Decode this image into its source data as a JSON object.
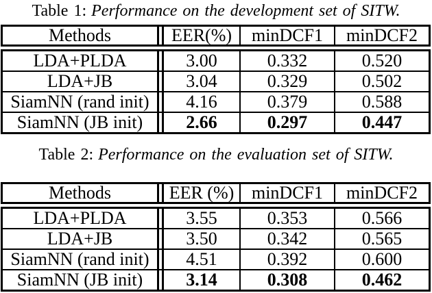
{
  "page": {
    "background_color": "#ffffff",
    "text_color": "#000000",
    "rule_color": "#000000"
  },
  "tables": [
    {
      "caption_label": "Table 1:",
      "caption_text": "Performance on the development set of SITW.",
      "headers": [
        "Methods",
        "EER(%)",
        "minDCF1",
        "minDCF2"
      ],
      "rows": [
        {
          "method": "LDA+PLDA",
          "eer": "3.00",
          "mindcf1": "0.332",
          "mindcf2": "0.520"
        },
        {
          "method": "LDA+JB",
          "eer": "3.04",
          "mindcf1": "0.329",
          "mindcf2": "0.502"
        },
        {
          "method": "SiamNN (rand init)",
          "eer": "4.16",
          "mindcf1": "0.379",
          "mindcf2": "0.588"
        },
        {
          "method": "SiamNN (JB init)",
          "eer": "2.66",
          "mindcf1": "0.297",
          "mindcf2": "0.447"
        }
      ],
      "best_row_index": 3
    },
    {
      "caption_label": "Table 2:",
      "caption_text": "Performance on the evaluation set of SITW.",
      "headers": [
        "Methods",
        "EER (%)",
        "minDCF1",
        "minDCF2"
      ],
      "rows": [
        {
          "method": "LDA+PLDA",
          "eer": "3.55",
          "mindcf1": "0.353",
          "mindcf2": "0.566"
        },
        {
          "method": "LDA+JB",
          "eer": "3.50",
          "mindcf1": "0.342",
          "mindcf2": "0.565"
        },
        {
          "method": "SiamNN (rand init)",
          "eer": "4.51",
          "mindcf1": "0.392",
          "mindcf2": "0.600"
        },
        {
          "method": "SiamNN (JB init)",
          "eer": "3.14",
          "mindcf1": "0.308",
          "mindcf2": "0.462"
        }
      ],
      "best_row_index": 3
    }
  ]
}
